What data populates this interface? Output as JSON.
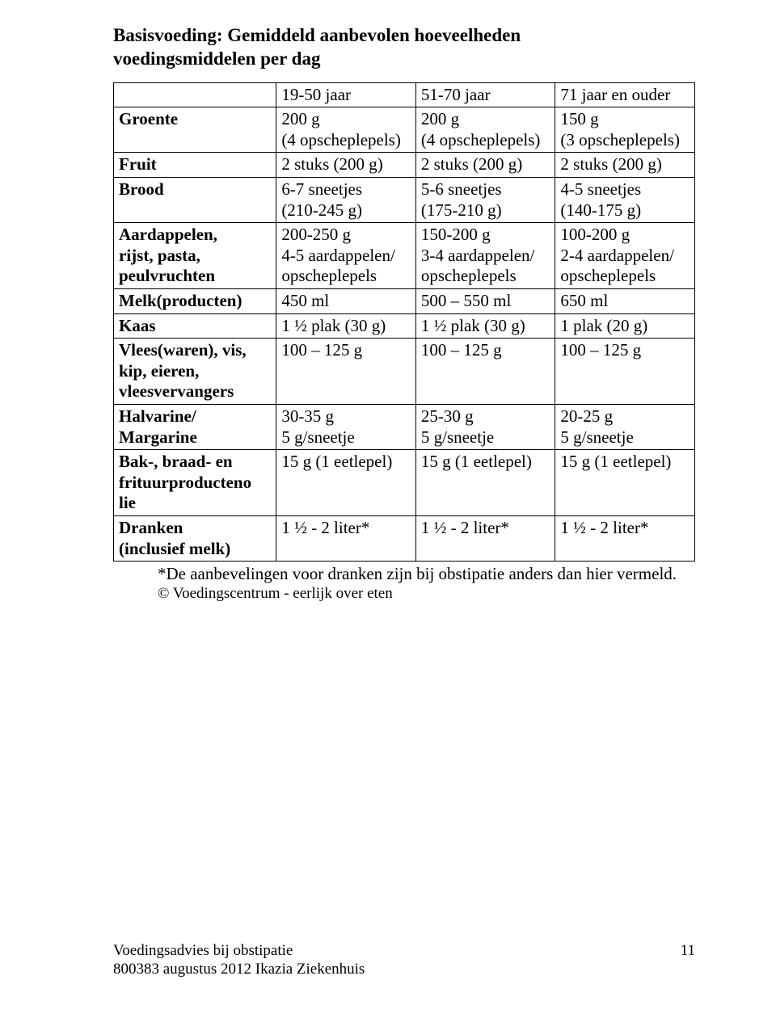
{
  "title_line1": "Basisvoeding: Gemiddeld aanbevolen hoeveelheden",
  "title_line2": "voedingsmiddelen per dag",
  "header": {
    "blank": "",
    "c1": "19-50 jaar",
    "c2": "51-70 jaar",
    "c3": "71 jaar en ouder"
  },
  "rows": {
    "groente": {
      "label": "Groente",
      "c1a": "200 g",
      "c1b": "(4 opscheplepels)",
      "c2a": "200 g",
      "c2b": "(4 opscheplepels)",
      "c3a": "150 g",
      "c3b": "(3 opscheplepels)"
    },
    "fruit": {
      "label": "Fruit",
      "c1": "2 stuks (200 g)",
      "c2": "2 stuks (200 g)",
      "c3": "2 stuks (200 g)"
    },
    "brood": {
      "label": "Brood",
      "c1a": "6-7 sneetjes",
      "c1b": "(210-245 g)",
      "c2a": "5-6 sneetjes",
      "c2b": "(175-210 g)",
      "c3a": "4-5 sneetjes",
      "c3b": "(140-175 g)"
    },
    "aardappelen": {
      "label_a": "Aardappelen,",
      "label_b": "rijst, pasta,",
      "label_c": "peulvruchten",
      "c1a": "200-250 g",
      "c1b": "4-5 aardappelen/",
      "c1c": "opscheplepels",
      "c2a": "150-200 g",
      "c2b": "3-4 aardappelen/",
      "c2c": "opscheplepels",
      "c3a": "100-200 g",
      "c3b": "2-4 aardappelen/",
      "c3c": "opscheplepels"
    },
    "melk": {
      "label": "Melk(producten)",
      "c1": "450 ml",
      "c2": "500 – 550 ml",
      "c3": "650 ml"
    },
    "kaas": {
      "label": "Kaas",
      "c1": "1 ½ plak (30 g)",
      "c2": "1 ½ plak (30 g)",
      "c3": "1 plak (20 g)"
    },
    "vlees": {
      "label_a": "Vlees(waren), vis,",
      "label_b": "kip, eieren,",
      "label_c": "vleesvervangers",
      "c1": "100 – 125 g",
      "c2": "100 – 125 g",
      "c3": "100 – 125 g"
    },
    "halvarine": {
      "label_a": "Halvarine/",
      "label_b": "Margarine",
      "c1a": "30-35 g",
      "c1b": "5 g/sneetje",
      "c2a": "25-30 g",
      "c2b": "5 g/sneetje",
      "c3a": "20-25 g",
      "c3b": "5 g/sneetje"
    },
    "bak": {
      "label_a": "Bak-, braad- en",
      "label_b": "frituurproducteno",
      "label_c": "lie",
      "c1": "15 g (1 eetlepel)",
      "c2": "15 g (1 eetlepel)",
      "c3": "15 g (1 eetlepel)"
    },
    "dranken": {
      "label_a": "Dranken",
      "label_b": "(inclusief melk)",
      "c1": "1 ½ - 2 liter*",
      "c2": "1 ½ - 2 liter*",
      "c3": "1 ½ - 2 liter*"
    }
  },
  "note": "*De aanbevelingen voor dranken zijn bij obstipatie anders dan hier vermeld.",
  "credit": "© Voedingscentrum - eerlijk over eten",
  "footer": {
    "line1": "Voedingsadvies bij obstipatie",
    "line2": "800383 augustus 2012 Ikazia Ziekenhuis",
    "page": "11"
  }
}
